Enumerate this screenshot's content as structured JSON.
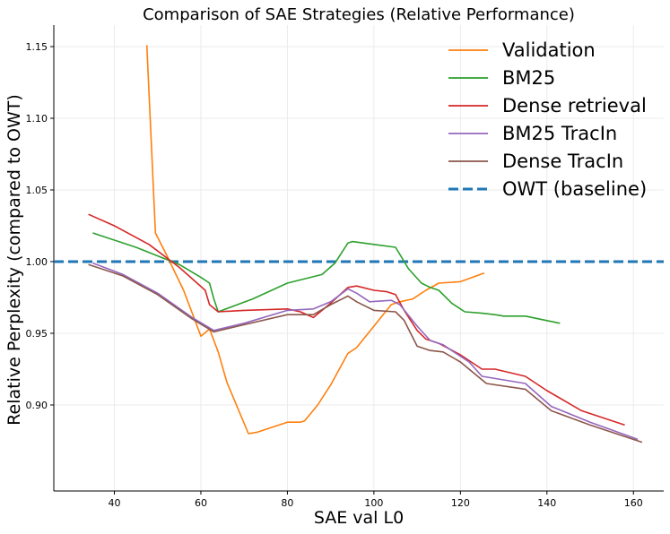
{
  "chart_data": {
    "type": "line",
    "title": "Comparison of SAE Strategies (Relative Performance)",
    "xlabel": "SAE val L0",
    "ylabel": "Relative Perplexity (compared to OWT)",
    "xlim": [
      26,
      167
    ],
    "ylim": [
      0.84,
      1.165
    ],
    "xticks": [
      40,
      60,
      80,
      100,
      120,
      140,
      160
    ],
    "yticks": [
      0.9,
      0.95,
      1.0,
      1.05,
      1.1,
      1.15
    ],
    "ytick_labels": [
      "0.90",
      "0.95",
      "1.00",
      "1.05",
      "1.10",
      "1.15"
    ],
    "grid": true,
    "legend_position": "top-right",
    "baseline": {
      "name": "OWT (baseline)",
      "y": 1.0,
      "color": "#1f77b4",
      "style": "dashed"
    },
    "series": [
      {
        "name": "Validation",
        "color": "#ff7f0e",
        "points": [
          [
            47.5,
            1.151
          ],
          [
            49.5,
            1.02
          ],
          [
            52,
            1.005
          ],
          [
            56,
            0.98
          ],
          [
            60,
            0.948
          ],
          [
            62,
            0.953
          ],
          [
            64,
            0.937
          ],
          [
            66,
            0.916
          ],
          [
            71,
            0.88
          ],
          [
            73,
            0.881
          ],
          [
            76,
            0.884
          ],
          [
            80,
            0.888
          ],
          [
            83,
            0.888
          ],
          [
            84,
            0.889
          ],
          [
            87,
            0.9
          ],
          [
            90,
            0.914
          ],
          [
            92,
            0.925
          ],
          [
            94,
            0.936
          ],
          [
            96,
            0.94
          ],
          [
            100,
            0.955
          ],
          [
            104,
            0.97
          ],
          [
            106,
            0.972
          ],
          [
            109,
            0.974
          ],
          [
            112,
            0.98
          ],
          [
            115,
            0.985
          ],
          [
            120,
            0.986
          ],
          [
            125.5,
            0.992
          ]
        ]
      },
      {
        "name": "BM25",
        "color": "#2ca02c",
        "points": [
          [
            35,
            1.02
          ],
          [
            45,
            1.01
          ],
          [
            55,
            0.998
          ],
          [
            60,
            0.989
          ],
          [
            62,
            0.985
          ],
          [
            63,
            0.974
          ],
          [
            64,
            0.965
          ],
          [
            72,
            0.974
          ],
          [
            80,
            0.985
          ],
          [
            88,
            0.991
          ],
          [
            91,
            0.999
          ],
          [
            94,
            1.013
          ],
          [
            95,
            1.014
          ],
          [
            100,
            1.012
          ],
          [
            105,
            1.01
          ],
          [
            108,
            0.995
          ],
          [
            111,
            0.985
          ],
          [
            113,
            0.982
          ],
          [
            115,
            0.98
          ],
          [
            118,
            0.971
          ],
          [
            121,
            0.965
          ],
          [
            125,
            0.964
          ],
          [
            128,
            0.963
          ],
          [
            130,
            0.962
          ],
          [
            135,
            0.962
          ],
          [
            143,
            0.957
          ]
        ]
      },
      {
        "name": "Dense retrieval",
        "color": "#d62728",
        "points": [
          [
            34,
            1.033
          ],
          [
            40,
            1.025
          ],
          [
            48,
            1.012
          ],
          [
            55,
            0.996
          ],
          [
            61,
            0.98
          ],
          [
            62,
            0.97
          ],
          [
            64,
            0.965
          ],
          [
            70,
            0.966
          ],
          [
            80,
            0.967
          ],
          [
            83,
            0.965
          ],
          [
            86,
            0.961
          ],
          [
            90,
            0.971
          ],
          [
            94,
            0.982
          ],
          [
            96,
            0.983
          ],
          [
            100,
            0.98
          ],
          [
            103,
            0.979
          ],
          [
            105,
            0.977
          ],
          [
            107,
            0.966
          ],
          [
            110,
            0.952
          ],
          [
            112,
            0.946
          ],
          [
            115,
            0.943
          ],
          [
            120,
            0.935
          ],
          [
            125,
            0.925
          ],
          [
            128,
            0.925
          ],
          [
            135,
            0.92
          ],
          [
            140,
            0.91
          ],
          [
            148,
            0.896
          ],
          [
            158,
            0.886
          ]
        ]
      },
      {
        "name": "BM25 TracIn",
        "color": "#9467bd",
        "points": [
          [
            35,
            0.999
          ],
          [
            42,
            0.991
          ],
          [
            50,
            0.978
          ],
          [
            58,
            0.961
          ],
          [
            63,
            0.952
          ],
          [
            70,
            0.957
          ],
          [
            80,
            0.966
          ],
          [
            86,
            0.967
          ],
          [
            90,
            0.972
          ],
          [
            94,
            0.981
          ],
          [
            96,
            0.978
          ],
          [
            99,
            0.972
          ],
          [
            104,
            0.973
          ],
          [
            106,
            0.97
          ],
          [
            110,
            0.955
          ],
          [
            113,
            0.945
          ],
          [
            116,
            0.942
          ],
          [
            122,
            0.93
          ],
          [
            125,
            0.92
          ],
          [
            135,
            0.915
          ],
          [
            141,
            0.899
          ],
          [
            150,
            0.888
          ],
          [
            161,
            0.876
          ]
        ]
      },
      {
        "name": "Dense TracIn",
        "color": "#8c564b",
        "points": [
          [
            34,
            0.998
          ],
          [
            42,
            0.99
          ],
          [
            50,
            0.977
          ],
          [
            58,
            0.96
          ],
          [
            63,
            0.951
          ],
          [
            70,
            0.956
          ],
          [
            80,
            0.963
          ],
          [
            86,
            0.963
          ],
          [
            90,
            0.97
          ],
          [
            94,
            0.976
          ],
          [
            96,
            0.972
          ],
          [
            100,
            0.966
          ],
          [
            105,
            0.965
          ],
          [
            107,
            0.959
          ],
          [
            110,
            0.941
          ],
          [
            113,
            0.938
          ],
          [
            116,
            0.937
          ],
          [
            120,
            0.93
          ],
          [
            126,
            0.915
          ],
          [
            135,
            0.911
          ],
          [
            141,
            0.896
          ],
          [
            150,
            0.886
          ],
          [
            162,
            0.874
          ]
        ]
      }
    ]
  }
}
